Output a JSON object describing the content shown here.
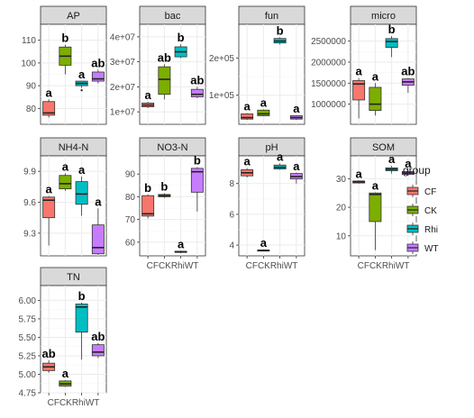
{
  "legend": {
    "title": "group",
    "groups": [
      {
        "name": "CF",
        "color": "#F8766D"
      },
      {
        "name": "CK",
        "color": "#7CAE00"
      },
      {
        "name": "Rhi",
        "color": "#00BFC4"
      },
      {
        "name": "WT",
        "color": "#C77CFF"
      }
    ]
  },
  "chart_data": [
    {
      "type": "box",
      "facet": "AP",
      "categories": [
        "CF",
        "CK",
        "Rhi",
        "WT"
      ],
      "ylim": [
        73,
        117
      ],
      "yticks": [
        80,
        90,
        100,
        110
      ],
      "ytick_labels": [
        "80",
        "90",
        "100",
        "110"
      ],
      "boxes": [
        {
          "group": "CF",
          "q1": 77,
          "median": 78,
          "q3": 83,
          "whisker_low": 76,
          "whisker_high": 84,
          "outliers": [],
          "sig": "a"
        },
        {
          "group": "CK",
          "q1": 99,
          "median": 103,
          "q3": 107,
          "whisker_low": 95,
          "whisker_high": 108,
          "outliers": [],
          "sig": "b"
        },
        {
          "group": "Rhi",
          "q1": 90,
          "median": 91,
          "q3": 92,
          "whisker_low": 89,
          "whisker_high": 92,
          "outliers": [
            88
          ],
          "sig": "a"
        },
        {
          "group": "WT",
          "q1": 92,
          "median": 93,
          "q3": 96,
          "whisker_low": 91,
          "whisker_high": 97,
          "outliers": [],
          "sig": "ab"
        }
      ]
    },
    {
      "type": "box",
      "facet": "bac",
      "categories": [
        "CF",
        "CK",
        "Rhi",
        "WT"
      ],
      "ylim": [
        5000000,
        45000000
      ],
      "yticks": [
        10000000,
        20000000,
        30000000,
        40000000
      ],
      "ytick_labels": [
        "1e+07",
        "2e+07",
        "3e+07",
        "4e+07"
      ],
      "boxes": [
        {
          "group": "CF",
          "q1": 12000000,
          "median": 12700000,
          "q3": 13500000,
          "whisker_low": 11500000,
          "whisker_high": 14000000,
          "outliers": [],
          "sig": "a"
        },
        {
          "group": "CK",
          "q1": 17000000,
          "median": 23000000,
          "q3": 28000000,
          "whisker_low": 15000000,
          "whisker_high": 29000000,
          "outliers": [],
          "sig": "ab"
        },
        {
          "group": "Rhi",
          "q1": 32000000,
          "median": 34000000,
          "q3": 36000000,
          "whisker_low": 31500000,
          "whisker_high": 37000000,
          "outliers": [],
          "sig": "b"
        },
        {
          "group": "WT",
          "q1": 16000000,
          "median": 17000000,
          "q3": 19000000,
          "whisker_low": 15500000,
          "whisker_high": 20000000,
          "outliers": [],
          "sig": "ab"
        }
      ]
    },
    {
      "type": "box",
      "facet": "fun",
      "categories": [
        "CF",
        "CK",
        "Rhi",
        "WT"
      ],
      "ylim": [
        22000,
        290000
      ],
      "yticks": [
        100000,
        200000
      ],
      "ytick_labels": [
        "1e+05",
        "2e+05"
      ],
      "boxes": [
        {
          "group": "CF",
          "q1": 36000,
          "median": 40000,
          "q3": 50000,
          "whisker_low": 34000,
          "whisker_high": 52000,
          "outliers": [],
          "sig": "a"
        },
        {
          "group": "CK",
          "q1": 45000,
          "median": 50000,
          "q3": 60000,
          "whisker_low": 44000,
          "whisker_high": 62000,
          "outliers": [],
          "sig": "a"
        },
        {
          "group": "Rhi",
          "q1": 240000,
          "median": 245000,
          "q3": 252000,
          "whisker_low": 236000,
          "whisker_high": 255000,
          "outliers": [],
          "sig": "b"
        },
        {
          "group": "WT",
          "q1": 36000,
          "median": 40000,
          "q3": 45000,
          "whisker_low": 34000,
          "whisker_high": 46000,
          "outliers": [],
          "sig": "a"
        }
      ]
    },
    {
      "type": "box",
      "facet": "micro",
      "categories": [
        "CF",
        "CK",
        "Rhi",
        "WT"
      ],
      "ylim": [
        520000,
        2900000
      ],
      "yticks": [
        1000000,
        1500000,
        2000000,
        2500000
      ],
      "ytick_labels": [
        "1000000",
        "1500000",
        "2000000",
        "2500000"
      ],
      "boxes": [
        {
          "group": "CF",
          "q1": 1100000,
          "median": 1480000,
          "q3": 1560000,
          "whisker_low": 660000,
          "whisker_high": 1620000,
          "outliers": [],
          "sig": "a"
        },
        {
          "group": "CK",
          "q1": 850000,
          "median": 1000000,
          "q3": 1400000,
          "whisker_low": 730000,
          "whisker_high": 1500000,
          "outliers": [],
          "sig": "a"
        },
        {
          "group": "Rhi",
          "q1": 2350000,
          "median": 2490000,
          "q3": 2560000,
          "whisker_low": 2120000,
          "whisker_high": 2620000,
          "outliers": [],
          "sig": "b"
        },
        {
          "group": "WT",
          "q1": 1450000,
          "median": 1530000,
          "q3": 1600000,
          "whisker_low": 1270000,
          "whisker_high": 1620000,
          "outliers": [],
          "sig": "ab"
        }
      ]
    },
    {
      "type": "box",
      "facet": "NH4-N",
      "categories": [
        "CF",
        "CK",
        "Rhi",
        "WT"
      ],
      "ylim": [
        9.08,
        10.05
      ],
      "yticks": [
        9.3,
        9.6,
        9.9
      ],
      "ytick_labels": [
        "9.3",
        "9.6",
        "9.9"
      ],
      "boxes": [
        {
          "group": "CF",
          "q1": 9.45,
          "median": 9.62,
          "q3": 9.65,
          "whisker_low": 9.18,
          "whisker_high": 9.66,
          "outliers": [],
          "sig": "a"
        },
        {
          "group": "CK",
          "q1": 9.73,
          "median": 9.78,
          "q3": 9.86,
          "whisker_low": 9.71,
          "whisker_high": 9.88,
          "outliers": [],
          "sig": "a"
        },
        {
          "group": "Rhi",
          "q1": 9.58,
          "median": 9.68,
          "q3": 9.8,
          "whisker_low": 9.47,
          "whisker_high": 9.85,
          "outliers": [],
          "sig": "a"
        },
        {
          "group": "WT",
          "q1": 9.1,
          "median": 9.16,
          "q3": 9.38,
          "whisker_low": 9.09,
          "whisker_high": 9.54,
          "outliers": [],
          "sig": "a"
        }
      ]
    },
    {
      "type": "box",
      "facet": "NO3-N",
      "categories": [
        "CF",
        "CK",
        "Rhi",
        "WT"
      ],
      "ylim": [
        54,
        98
      ],
      "yticks": [
        60,
        70,
        80,
        90
      ],
      "ytick_labels": [
        "60",
        "70",
        "80",
        "90"
      ],
      "boxes": [
        {
          "group": "CF",
          "q1": 71.5,
          "median": 72.5,
          "q3": 80.5,
          "whisker_low": 70.5,
          "whisker_high": 81,
          "outliers": [],
          "sig": "b"
        },
        {
          "group": "CK",
          "q1": 80,
          "median": 80.5,
          "q3": 81,
          "whisker_low": 79.5,
          "whisker_high": 81.5,
          "outliers": [],
          "sig": "b"
        },
        {
          "group": "Rhi",
          "q1": 55.5,
          "median": 55.8,
          "q3": 56,
          "whisker_low": 55.2,
          "whisker_high": 56.2,
          "outliers": [],
          "sig": "a"
        },
        {
          "group": "WT",
          "q1": 82,
          "median": 91,
          "q3": 92.5,
          "whisker_low": 73.5,
          "whisker_high": 93,
          "outliers": [],
          "sig": "b"
        }
      ]
    },
    {
      "type": "box",
      "facet": "pH",
      "categories": [
        "CF",
        "CK",
        "Rhi",
        "WT"
      ],
      "ylim": [
        3.3,
        9.8
      ],
      "yticks": [
        4,
        6,
        8
      ],
      "ytick_labels": [
        "4",
        "6",
        "8"
      ],
      "boxes": [
        {
          "group": "CF",
          "q1": 8.5,
          "median": 8.7,
          "q3": 8.9,
          "whisker_low": 8.4,
          "whisker_high": 9.0,
          "outliers": [],
          "sig": "a"
        },
        {
          "group": "CK",
          "q1": 3.62,
          "median": 3.65,
          "q3": 3.68,
          "whisker_low": 3.6,
          "whisker_high": 3.7,
          "outliers": [],
          "sig": "a"
        },
        {
          "group": "Rhi",
          "q1": 8.95,
          "median": 9.05,
          "q3": 9.2,
          "whisker_low": 8.9,
          "whisker_high": 9.3,
          "outliers": [],
          "sig": "a"
        },
        {
          "group": "WT",
          "q1": 8.3,
          "median": 8.45,
          "q3": 8.65,
          "whisker_low": 8.0,
          "whisker_high": 8.7,
          "outliers": [],
          "sig": "a"
        }
      ]
    },
    {
      "type": "box",
      "facet": "SOM",
      "categories": [
        "CF",
        "CK",
        "Rhi",
        "WT"
      ],
      "ylim": [
        3,
        38
      ],
      "yticks": [
        10,
        20,
        30
      ],
      "ytick_labels": [
        "10",
        "20",
        "30"
      ],
      "boxes": [
        {
          "group": "CF",
          "q1": 28.5,
          "median": 28.9,
          "q3": 29.2,
          "whisker_low": 28.3,
          "whisker_high": 29.4,
          "outliers": [],
          "sig": "a"
        },
        {
          "group": "CK",
          "q1": 15,
          "median": 24.5,
          "q3": 25,
          "whisker_low": 5,
          "whisker_high": 25.2,
          "outliers": [],
          "sig": "a"
        },
        {
          "group": "Rhi",
          "q1": 32.8,
          "median": 33.3,
          "q3": 33.8,
          "whisker_low": 31.8,
          "whisker_high": 34.5,
          "outliers": [],
          "sig": "a"
        },
        {
          "group": "WT",
          "q1": 31.5,
          "median": 32,
          "q3": 32.5,
          "whisker_low": 31,
          "whisker_high": 33,
          "outliers": [],
          "sig": "a"
        }
      ]
    },
    {
      "type": "box",
      "facet": "TN",
      "categories": [
        "CF",
        "CK",
        "Rhi",
        "WT"
      ],
      "ylim": [
        4.75,
        6.2
      ],
      "yticks": [
        4.75,
        5.0,
        5.25,
        5.5,
        5.75,
        6.0
      ],
      "ytick_labels": [
        "4.75",
        "5.00",
        "5.25",
        "5.50",
        "5.75",
        "6.00"
      ],
      "boxes": [
        {
          "group": "CF",
          "q1": 5.05,
          "median": 5.1,
          "q3": 5.15,
          "whisker_low": 5.02,
          "whisker_high": 5.19,
          "outliers": [],
          "sig": "ab"
        },
        {
          "group": "CK",
          "q1": 4.84,
          "median": 4.87,
          "q3": 4.91,
          "whisker_low": 4.83,
          "whisker_high": 4.92,
          "outliers": [],
          "sig": "a"
        },
        {
          "group": "Rhi",
          "q1": 5.57,
          "median": 5.91,
          "q3": 5.95,
          "whisker_low": 5.2,
          "whisker_high": 5.97,
          "outliers": [],
          "sig": "b"
        },
        {
          "group": "WT",
          "q1": 5.25,
          "median": 5.3,
          "q3": 5.4,
          "whisker_low": 5.22,
          "whisker_high": 5.42,
          "outliers": [],
          "sig": "ab"
        }
      ]
    }
  ],
  "x_axes": [
    {
      "facet": "NO3-N",
      "label": "CFCKRhiWT"
    },
    {
      "facet": "pH",
      "label": "CFCKRhiWT"
    },
    {
      "facet": "SOM",
      "label": "CFCKRhiWT"
    },
    {
      "facet": "TN",
      "label": "CFCKRhiWT"
    }
  ]
}
